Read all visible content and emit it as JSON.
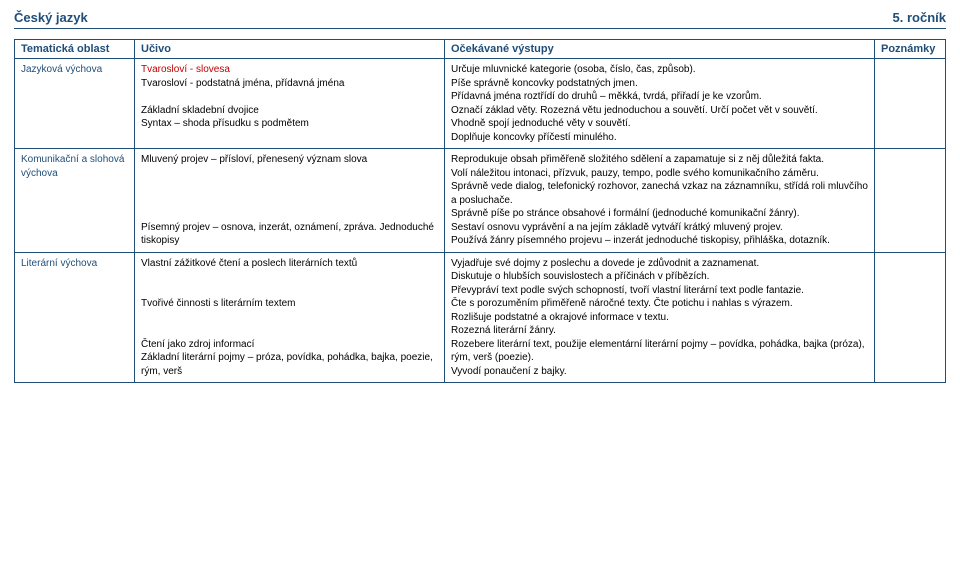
{
  "header": {
    "subject": "Český jazyk",
    "grade": "5. ročník"
  },
  "columns": {
    "c1": "Tematická oblast",
    "c2": "Učivo",
    "c3": "Očekávané výstupy",
    "c4": "Poznámky"
  },
  "rows": [
    {
      "area": "Jazyková výchova",
      "ucivo": {
        "lines": [
          {
            "text": "Tvarosloví - slovesa",
            "red": true
          },
          {
            "text": "Tvarosloví - podstatná jména, přídavná jména"
          },
          {
            "text": "",
            "spacer": true
          },
          {
            "text": "Základní skladební dvojice"
          },
          {
            "text": "Syntax – shoda přísudku s podmětem"
          }
        ]
      },
      "vystupy": [
        "Určuje mluvnické kategorie (osoba, číslo, čas, způsob).",
        "Píše správně koncovky podstatných jmen.",
        "Přídavná jména roztřídí do druhů – měkká, tvrdá, přiřadí je ke vzorům.",
        "Označí základ věty. Rozezná větu jednoduchou a souvětí. Určí počet vět v souvětí.",
        "Vhodně spojí jednoduché věty v souvětí.",
        "Doplňuje koncovky příčestí minulého."
      ],
      "poznamky": ""
    },
    {
      "area": "Komunikační a slohová výchova",
      "ucivo": {
        "lines": [
          {
            "text": "Mluvený projev – přísloví, přenesený význam slova"
          },
          {
            "text": "",
            "spacer": true
          },
          {
            "text": "",
            "spacer": true
          },
          {
            "text": "",
            "spacer": true
          },
          {
            "text": "",
            "spacer": true
          },
          {
            "text": "Písemný projev – osnova, inzerát, oznámení, zpráva. Jednoduché tiskopisy"
          }
        ]
      },
      "vystupy": [
        "Reprodukuje obsah přiměřeně složitého sdělení a zapamatuje si z něj důležitá fakta.",
        "Volí náležitou intonaci, přízvuk, pauzy, tempo, podle svého komunikačního záměru.",
        "Správně vede dialog, telefonický rozhovor, zanechá vzkaz na záznamníku, střídá roli mluvčího a posluchače.",
        "Správně píše po stránce obsahové i formální (jednoduché komunikační žánry).",
        "Sestaví osnovu vyprávění a na jejím základě vytváří krátký mluvený projev.",
        "Používá žánry písemného projevu – inzerát jednoduché tiskopisy, přihláška, dotazník."
      ],
      "poznamky": ""
    },
    {
      "area": "Literární výchova",
      "ucivo": {
        "lines": [
          {
            "text": "Vlastní zážitkové čtení a poslech literárních textů"
          },
          {
            "text": "",
            "spacer": true
          },
          {
            "text": "",
            "spacer": true
          },
          {
            "text": "Tvořivé činnosti s literárním textem"
          },
          {
            "text": "",
            "spacer": true
          },
          {
            "text": "",
            "spacer": true
          },
          {
            "text": "Čtení jako zdroj informací"
          },
          {
            "text": "Základní literární pojmy – próza, povídka, pohádka, bajka, poezie, rým, verš"
          }
        ]
      },
      "vystupy": [
        "Vyjadřuje své dojmy z poslechu a dovede je zdůvodnit a zaznamenat.",
        "Diskutuje o hlubších souvislostech a příčinách v příbězích.",
        "Převypráví text podle svých schopností, tvoří vlastní literární text podle fantazie.",
        "Čte s porozuměním přiměřeně náročné texty. Čte potichu i nahlas s výrazem.",
        "Rozlišuje podstatné a okrajové informace v textu.",
        "Rozezná literární žánry.",
        "Rozebere literární text, použije elementární literární pojmy – povídka, pohádka, bajka (próza), rým, verš (poezie).",
        "Vyvodí ponaučení z bajky."
      ],
      "poznamky": ""
    }
  ]
}
